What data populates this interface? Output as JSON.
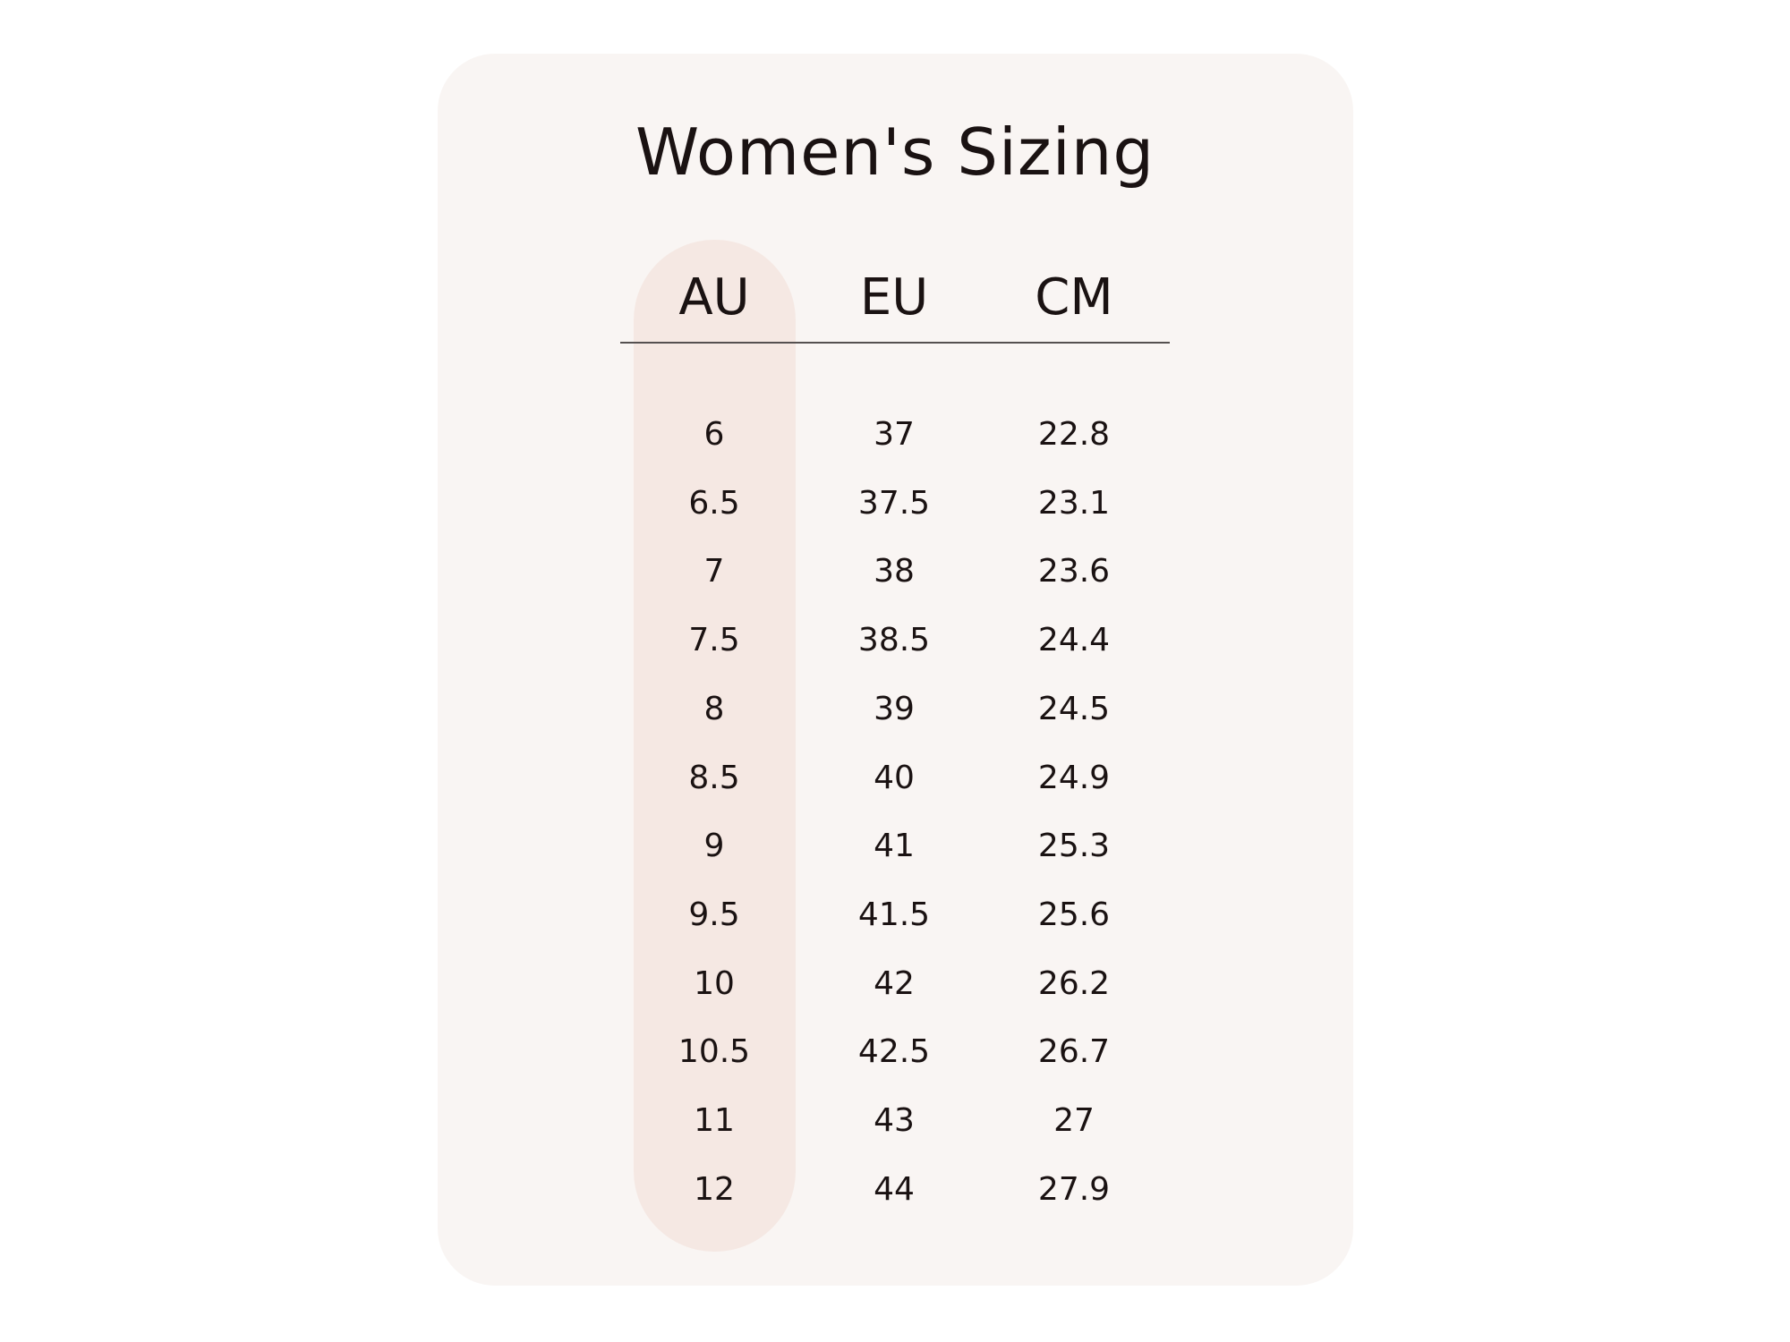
{
  "title": "Women's Sizing",
  "colors": {
    "card": "#f9f5f3",
    "highlight_column": "#f5e8e3",
    "text": "#1a1212"
  },
  "highlighted_column": "AU",
  "columns": [
    "AU",
    "EU",
    "CM"
  ],
  "rows": [
    [
      "6",
      "37",
      "22.8"
    ],
    [
      "6.5",
      "37.5",
      "23.1"
    ],
    [
      "7",
      "38",
      "23.6"
    ],
    [
      "7.5",
      "38.5",
      "24.4"
    ],
    [
      "8",
      "39",
      "24.5"
    ],
    [
      "8.5",
      "40",
      "24.9"
    ],
    [
      "9",
      "41",
      "25.3"
    ],
    [
      "9.5",
      "41.5",
      "25.6"
    ],
    [
      "10",
      "42",
      "26.2"
    ],
    [
      "10.5",
      "42.5",
      "26.7"
    ],
    [
      "11",
      "43",
      "27"
    ],
    [
      "12",
      "44",
      "27.9"
    ]
  ]
}
